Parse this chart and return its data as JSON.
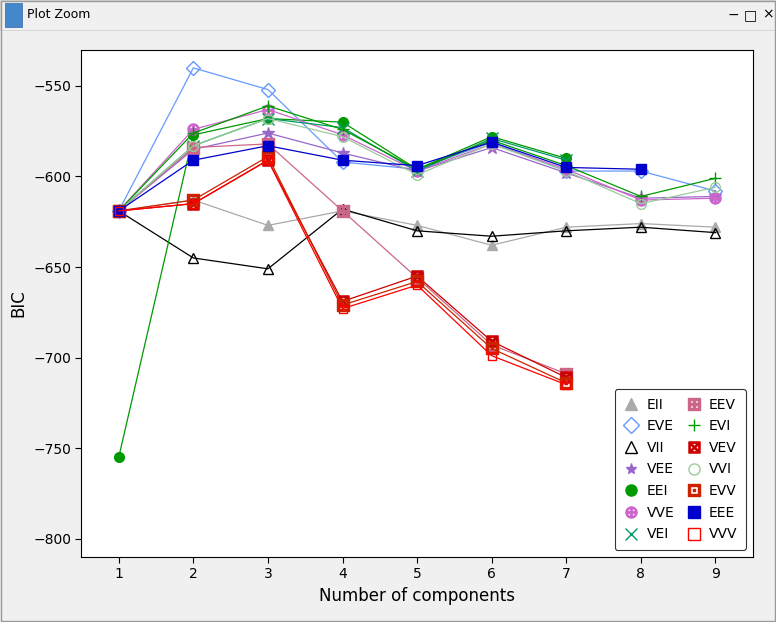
{
  "xlabel": "Number of components",
  "ylabel": "BIC",
  "xlim": [
    0.5,
    9.5
  ],
  "ylim": [
    -810,
    -530
  ],
  "xticks": [
    1,
    2,
    3,
    4,
    5,
    6,
    7,
    8,
    9
  ],
  "yticks": [
    -800,
    -750,
    -700,
    -650,
    -600,
    -550
  ],
  "bg_outer": "#f0f0f0",
  "bg_plot": "#ffffff",
  "window_title": "Plot Zoom",
  "series": {
    "EII": {
      "x": [
        1,
        2,
        3,
        4,
        5,
        6,
        7,
        8,
        9
      ],
      "y": [
        -619,
        -613,
        -627,
        -619,
        -627,
        -638,
        -628,
        -626,
        -628
      ],
      "color": "#aaaaaa",
      "marker": "^",
      "mfc": "#aaaaaa",
      "ms": 7
    },
    "VII": {
      "x": [
        1,
        2,
        3,
        4,
        5,
        6,
        7,
        8,
        9
      ],
      "y": [
        -619,
        -645,
        -651,
        -618,
        -630,
        -633,
        -630,
        -628,
        -631
      ],
      "color": "#000000",
      "marker": "^",
      "mfc": "none",
      "ms": 7
    },
    "EEI": {
      "x": [
        1,
        2,
        3,
        4,
        5,
        6,
        7
      ],
      "y": [
        -755,
        -577,
        -568,
        -570,
        -596,
        -578,
        -590
      ],
      "color": "#009900",
      "marker": "o",
      "mfc": "#009900",
      "ms": 7
    },
    "VEI": {
      "x": [
        1,
        2,
        3,
        4,
        5,
        6,
        7
      ],
      "y": [
        -619,
        -583,
        -568,
        -573,
        -597,
        -579,
        -591
      ],
      "color": "#009966",
      "marker": "x",
      "mfc": "#009966",
      "ms": 8
    },
    "EVI": {
      "x": [
        1,
        2,
        3,
        4,
        5,
        6,
        7,
        8,
        9
      ],
      "y": [
        -619,
        -576,
        -561,
        -574,
        -596,
        -580,
        -594,
        -611,
        -601
      ],
      "color": "#009900",
      "marker": "+",
      "mfc": "#009900",
      "ms": 9
    },
    "VVI": {
      "x": [
        1,
        2,
        3,
        4,
        5,
        6,
        7,
        8,
        9
      ],
      "y": [
        -619,
        -583,
        -568,
        -578,
        -599,
        -582,
        -597,
        -615,
        -606
      ],
      "color": "#99cc99",
      "marker": "o",
      "mfc": "none",
      "ms": 7
    },
    "EEE": {
      "x": [
        1,
        2,
        3,
        4,
        5,
        6,
        7,
        8
      ],
      "y": [
        -619,
        -591,
        -583,
        -591,
        -594,
        -581,
        -595,
        -596
      ],
      "color": "#0000cc",
      "marker": "s",
      "mfc": "#0000cc",
      "ms": 7
    },
    "EVE": {
      "x": [
        1,
        2,
        3,
        4,
        5,
        6,
        7,
        8,
        9
      ],
      "y": [
        -619,
        -540,
        -552,
        -592,
        -596,
        -581,
        -597,
        -597,
        -608
      ],
      "color": "#6699ff",
      "marker": "D",
      "mfc": "none",
      "ms": 7
    },
    "VEE": {
      "x": [
        1,
        2,
        3,
        4,
        5,
        6,
        7,
        8,
        9
      ],
      "y": [
        -619,
        -585,
        -576,
        -587,
        -597,
        -584,
        -598,
        -612,
        -611
      ],
      "color": "#9966cc",
      "marker": "*",
      "mfc": "#9966cc",
      "ms": 9
    },
    "VVE": {
      "x": [
        1,
        2,
        3,
        4,
        5,
        6,
        7,
        8,
        9
      ],
      "y": [
        -619,
        -574,
        -563,
        -577,
        -597,
        -582,
        -596,
        -613,
        -612
      ],
      "color": "#cc66cc",
      "marker": "$\\oplus$",
      "mfc": "#cc66cc",
      "ms": 8
    },
    "EEV": {
      "x": [
        1,
        2,
        3,
        4,
        5,
        6,
        7
      ],
      "y": [
        -619,
        -584,
        -582,
        -619,
        -656,
        -693,
        -709
      ],
      "color": "#cc6688",
      "marker": "$\\boxplus$",
      "mfc": "#cc6688",
      "ms": 8
    },
    "VEV": {
      "x": [
        1,
        2,
        3,
        4,
        5,
        6,
        7
      ],
      "y": [
        -619,
        -615,
        -591,
        -669,
        -655,
        -691,
        -711
      ],
      "color": "#cc0000",
      "marker": "$\\boxtimes$",
      "mfc": "#cc0000",
      "ms": 8
    },
    "EVV": {
      "x": [
        1,
        2,
        3,
        4,
        5,
        6,
        7
      ],
      "y": [
        -619,
        -613,
        -589,
        -671,
        -658,
        -695,
        -714
      ],
      "color": "#cc2200",
      "marker": "$\\boxdot$",
      "mfc": "#cc2200",
      "ms": 8
    },
    "VVV": {
      "x": [
        1,
        2,
        3,
        4,
        5,
        6,
        7
      ],
      "y": [
        -619,
        -615,
        -591,
        -673,
        -660,
        -699,
        -715
      ],
      "color": "#ff0000",
      "marker": "s",
      "mfc": "none",
      "ms": 6
    }
  },
  "legend_order": [
    "EII",
    "EVE",
    "VII",
    "VEE",
    "EEI",
    "VVE",
    "VEI",
    "EEV",
    "EVI",
    "VEV",
    "VVI",
    "EVV",
    "EEE",
    "VVV"
  ]
}
